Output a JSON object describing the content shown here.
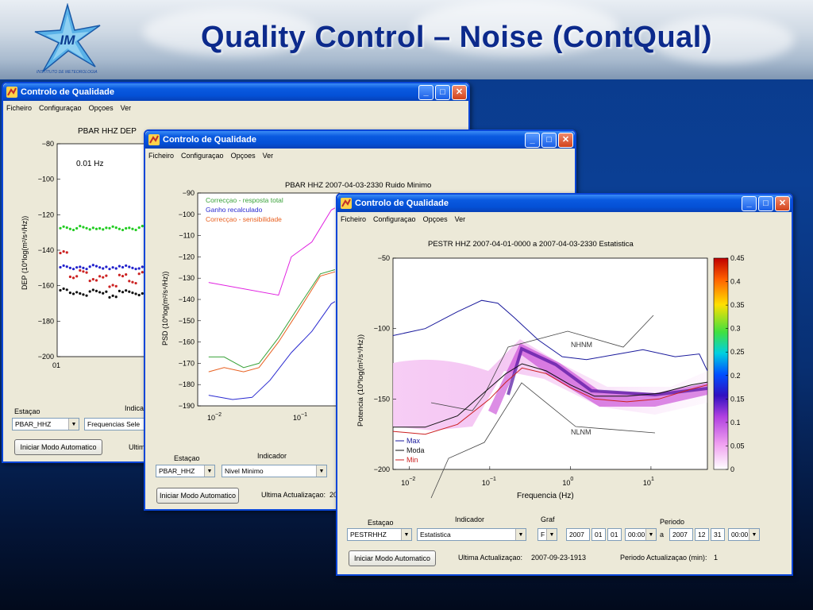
{
  "slide": {
    "title": "Quality Control – Noise (ContQual)",
    "logo_text": "IM",
    "logo_caption": "INSTITUTO DE METEOROLOGIA"
  },
  "window1": {
    "title": "Controlo de Qualidade",
    "menu": [
      "Ficheiro",
      "Configuraçao",
      "Opçoes",
      "Ver"
    ],
    "plot_title": "PBAR HHZ  DEP",
    "freq_label": "0.01 Hz",
    "ylabel": "DEP (10*log(m²/s⁴/Hz))",
    "station_label": "Estaçao",
    "indicator_label": "Indica",
    "station_value": "PBAR_HHZ",
    "indicator_value": "Frequencias Sele",
    "auto_button": "Iniciar Modo Automatico",
    "last_update_label": "Ultim",
    "x_tick": "01"
  },
  "window2": {
    "title": "Controlo de Qualidade",
    "menu": [
      "Ficheiro",
      "Configuraçao",
      "Opçoes",
      "Ver"
    ],
    "plot_title": "PBAR  HHZ  2007-04-03-2330  Ruido Minimo",
    "ylabel": "PSD (10*log(m²/s⁴/Hz))",
    "legend": [
      "Correcçao - resposta total",
      "Ganho recalculado",
      "Correcçao - sensibilidade"
    ],
    "station_label": "Estaçao",
    "indicator_label": "Indicador",
    "station_value": "PBAR_HHZ",
    "indicator_value": "Nivel Minimo",
    "auto_button": "Iniciar Modo Automatico",
    "last_update_label": "Ultima Actualizaçao:",
    "last_update_value": "20"
  },
  "window3": {
    "title": "Controlo de Qualidade",
    "menu": [
      "Ficheiro",
      "Configuraçao",
      "Opçoes",
      "Ver"
    ],
    "plot_title": "PESTR HHZ  2007-04-01-0000 a 2007-04-03-2330  Estatistica",
    "xlabel": "Frequencia (Hz)",
    "ylabel": "Potencia (10*log(m²/s⁴/Hz))",
    "legend": [
      "Max",
      "Moda",
      "Min"
    ],
    "nhnm_label": "NHNM",
    "nlnm_label": "NLNM",
    "colorbar_ticks": [
      "0.45",
      "0.4",
      "0.35",
      "0.3",
      "0.25",
      "0.2",
      "0.15",
      "0.1",
      "0.05",
      "0"
    ],
    "station_label": "Estaçao",
    "indicator_label": "Indicador",
    "graf_label": "Graf",
    "periodo_label": "Periodo",
    "station_value": "PESTRHHZ",
    "indicator_value": "Estatistica",
    "graf_value": "F",
    "start_year": "2007",
    "start_month": "01",
    "start_day": "01",
    "start_time": "00:00",
    "a_label": "a",
    "end_year": "2007",
    "end_month": "12",
    "end_day": "31",
    "end_time": "00:00",
    "auto_button": "Iniciar Modo Automatico",
    "last_update_label": "Ultima Actualizaçao:",
    "last_update_value": "2007-09-23-1913",
    "period_label": "Periodo Actualizaçao (min):",
    "period_value": "1"
  },
  "chart_data": [
    {
      "type": "scatter",
      "title": "PBAR HHZ  DEP",
      "ylabel": "DEP (10*log(m²/s⁴/Hz))",
      "annotation": "0.01 Hz",
      "ylim": [
        -200,
        -80
      ],
      "yticks": [
        -80,
        -100,
        -120,
        -140,
        -160,
        -180,
        -200
      ],
      "series": [
        {
          "color": "#22cc22",
          "values": [
            -127,
            -128,
            -127,
            -128,
            -128,
            -127,
            -128,
            -128,
            -127,
            -128
          ]
        },
        {
          "color": "#2222cc",
          "values": [
            -149,
            -150,
            -150,
            -149,
            -150,
            -150,
            -149,
            -150,
            -150,
            -149
          ]
        },
        {
          "color": "#cc2222",
          "values": [
            -141,
            -155,
            -152,
            -157,
            -155,
            -160,
            -154,
            -158,
            -153,
            -156
          ]
        },
        {
          "color": "#111111",
          "values": [
            -162,
            -164,
            -165,
            -163,
            -164,
            -166,
            -163,
            -164,
            -165,
            -163
          ]
        }
      ]
    },
    {
      "type": "line",
      "title": "PBAR  HHZ  2007-04-03-2330  Ruido Minimo",
      "ylabel": "PSD (10*log(m²/s⁴/Hz))",
      "ylim": [
        -190,
        -90
      ],
      "yticks": [
        -90,
        -100,
        -110,
        -120,
        -130,
        -140,
        -150,
        -160,
        -170,
        -180,
        -190
      ],
      "xtick_labels": [
        "10⁻²",
        "10⁻¹"
      ],
      "series": [
        {
          "name": "Correcçao - resposta total",
          "color": "#3aa23a",
          "points": [
            [
              0.008,
              -167
            ],
            [
              0.012,
              -167
            ],
            [
              0.02,
              -172
            ],
            [
              0.03,
              -170
            ],
            [
              0.05,
              -158
            ],
            [
              0.08,
              -145
            ],
            [
              0.15,
              -128
            ],
            [
              0.22,
              -126
            ]
          ]
        },
        {
          "name": "Ganho recalculado",
          "color": "#2a2ad0",
          "points": [
            [
              0.008,
              -185
            ],
            [
              0.015,
              -187
            ],
            [
              0.025,
              -186
            ],
            [
              0.04,
              -178
            ],
            [
              0.07,
              -165
            ],
            [
              0.12,
              -155
            ],
            [
              0.2,
              -142
            ],
            [
              0.22,
              -141
            ]
          ]
        },
        {
          "name": "Correcçao - sensibilidade",
          "color": "#e86020",
          "points": [
            [
              0.008,
              -174
            ],
            [
              0.012,
              -172
            ],
            [
              0.02,
              -174
            ],
            [
              0.03,
              -172
            ],
            [
              0.05,
              -160
            ],
            [
              0.08,
              -147
            ],
            [
              0.15,
              -129
            ],
            [
              0.22,
              -127
            ]
          ]
        },
        {
          "color": "#e020e0",
          "points": [
            [
              0.008,
              -132
            ],
            [
              0.05,
              -138
            ],
            [
              0.07,
              -120
            ],
            [
              0.12,
              -113
            ],
            [
              0.2,
              -98
            ],
            [
              0.22,
              -97
            ]
          ]
        }
      ]
    },
    {
      "type": "heatmap",
      "title": "PESTR HHZ  2007-04-01-0000 a 2007-04-03-2330  Estatistica",
      "xlabel": "Frequencia (Hz)",
      "ylabel": "Potencia (10*log(m²/s⁴/Hz))",
      "xlim_log10": [
        -2.2,
        1.7
      ],
      "ylim": [
        -200,
        -50
      ],
      "yticks": [
        -50,
        -100,
        -150,
        -200
      ],
      "xtick_labels": [
        "10⁻²",
        "10⁻¹",
        "10⁰",
        "10¹"
      ],
      "colorbar_range": [
        0,
        0.45
      ],
      "series": [
        {
          "name": "Max",
          "color": "#1a1a9c",
          "points": [
            [
              -2.2,
              -105
            ],
            [
              -1.8,
              -100
            ],
            [
              -1.4,
              -88
            ],
            [
              -1.1,
              -80
            ],
            [
              -0.9,
              -82
            ],
            [
              -0.7,
              -92
            ],
            [
              -0.4,
              -108
            ],
            [
              -0.1,
              -120
            ],
            [
              0.2,
              -122
            ],
            [
              0.6,
              -118
            ],
            [
              0.9,
              -115
            ],
            [
              1.3,
              -120
            ],
            [
              1.6,
              -118
            ],
            [
              1.7,
              -130
            ]
          ]
        },
        {
          "name": "Moda",
          "color": "#111111",
          "points": [
            [
              -2.2,
              -170
            ],
            [
              -1.8,
              -170
            ],
            [
              -1.4,
              -162
            ],
            [
              -1.0,
              -142
            ],
            [
              -0.8,
              -132
            ],
            [
              -0.6,
              -125
            ],
            [
              -0.3,
              -130
            ],
            [
              0.0,
              -140
            ],
            [
              0.3,
              -148
            ],
            [
              0.7,
              -148
            ],
            [
              1.1,
              -146
            ],
            [
              1.5,
              -140
            ],
            [
              1.7,
              -138
            ]
          ]
        },
        {
          "name": "Min",
          "color": "#cc2020",
          "points": [
            [
              -2.2,
              -173
            ],
            [
              -1.8,
              -175
            ],
            [
              -1.4,
              -168
            ],
            [
              -1.0,
              -150
            ],
            [
              -0.8,
              -138
            ],
            [
              -0.6,
              -128
            ],
            [
              -0.3,
              -132
            ],
            [
              0.0,
              -142
            ],
            [
              0.3,
              -150
            ],
            [
              0.7,
              -152
            ],
            [
              1.1,
              -150
            ],
            [
              1.5,
              -143
            ],
            [
              1.7,
              -140
            ]
          ]
        }
      ]
    }
  ]
}
